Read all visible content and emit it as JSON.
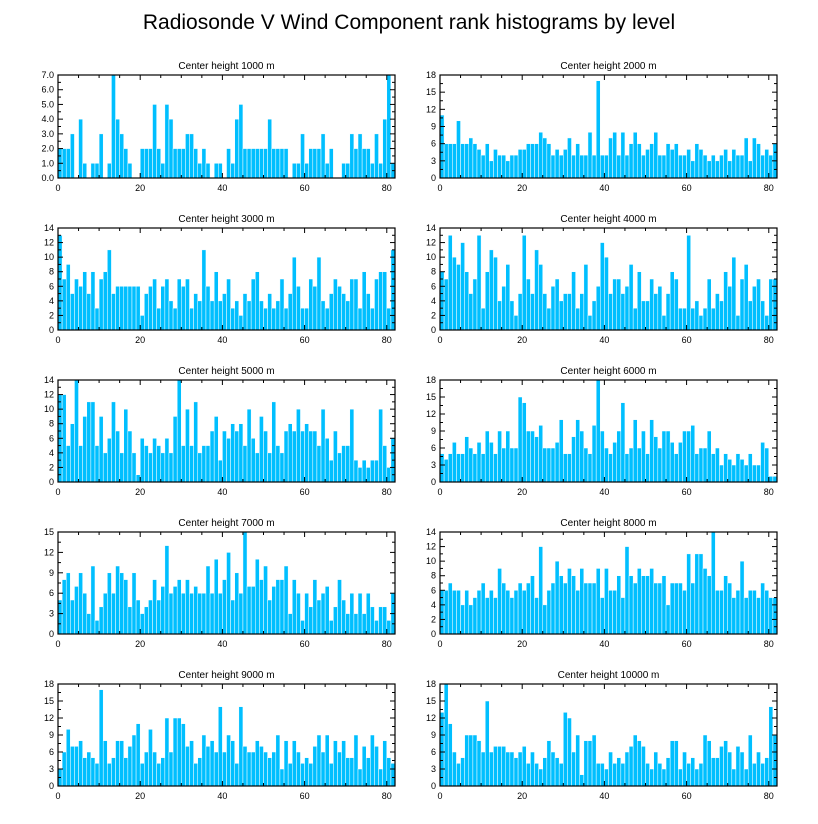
{
  "title": "Radiosonde V Wind Component rank histograms by level",
  "colors": {
    "bar": "#00bfff",
    "bar_edge": "#ffffff",
    "axis": "#000000"
  },
  "chart_data": [
    {
      "type": "bar",
      "title": "Center height 1000 m",
      "xlim": [
        0,
        82
      ],
      "xticks": [
        0,
        20,
        40,
        60,
        80
      ],
      "ylim": [
        0,
        7
      ],
      "yticks": [
        0,
        1,
        2,
        3,
        4,
        5,
        6,
        7
      ],
      "ytick_labels": [
        "0.0",
        "1.0",
        "2.0",
        "3.0",
        "4.0",
        "5.0",
        "6.0",
        "7.0"
      ],
      "values": [
        2,
        2,
        2,
        3,
        0,
        4,
        1,
        0,
        1,
        1,
        3,
        0,
        1,
        7,
        4,
        3,
        2,
        1,
        0,
        0,
        2,
        2,
        2,
        5,
        2,
        1,
        5,
        4,
        2,
        2,
        2,
        3,
        3,
        2,
        1,
        2,
        1,
        0,
        1,
        1,
        0,
        2,
        1,
        4,
        5,
        2,
        2,
        2,
        2,
        2,
        2,
        4,
        2,
        2,
        2,
        2,
        0,
        1,
        1,
        3,
        1,
        2,
        2,
        2,
        3,
        1,
        2,
        0,
        0,
        1,
        1,
        3,
        2,
        3,
        2,
        2,
        1,
        3,
        1,
        4,
        7,
        1
      ]
    },
    {
      "type": "bar",
      "title": "Center height 2000 m",
      "xlim": [
        0,
        82
      ],
      "xticks": [
        0,
        20,
        40,
        60,
        80
      ],
      "ylim": [
        0,
        18
      ],
      "yticks": [
        0,
        3,
        6,
        9,
        12,
        15,
        18
      ],
      "ytick_labels": [
        "0",
        "3",
        "6",
        "9",
        "12",
        "15",
        "18"
      ],
      "values": [
        11,
        6,
        6,
        6,
        10,
        6,
        6,
        7,
        6,
        5,
        4,
        6,
        3,
        5,
        4,
        4,
        3,
        4,
        4,
        5,
        5,
        6,
        6,
        6,
        8,
        7,
        6,
        4,
        5,
        4,
        5,
        7,
        4,
        6,
        4,
        4,
        8,
        4,
        17,
        4,
        4,
        7,
        8,
        4,
        8,
        4,
        6,
        8,
        6,
        4,
        5,
        6,
        8,
        4,
        4,
        6,
        5,
        6,
        4,
        4,
        5,
        3,
        6,
        5,
        4,
        3,
        4,
        3,
        4,
        5,
        3,
        5,
        4,
        4,
        7,
        3,
        7,
        6,
        4,
        5,
        4,
        6
      ]
    },
    {
      "type": "bar",
      "title": "Center height 3000 m",
      "xlim": [
        0,
        82
      ],
      "xticks": [
        0,
        20,
        40,
        60,
        80
      ],
      "ylim": [
        0,
        14
      ],
      "yticks": [
        0,
        2,
        4,
        6,
        8,
        10,
        12,
        14
      ],
      "ytick_labels": [
        "0",
        "2",
        "4",
        "6",
        "8",
        "10",
        "12",
        "14"
      ],
      "values": [
        13,
        7,
        9,
        5,
        7,
        6,
        8,
        5,
        8,
        3,
        7,
        8,
        11,
        5,
        6,
        6,
        6,
        6,
        6,
        6,
        2,
        5,
        6,
        7,
        3,
        6,
        7,
        4,
        3,
        7,
        6,
        7,
        3,
        5,
        4,
        11,
        6,
        4,
        8,
        4,
        5,
        7,
        3,
        4,
        2,
        5,
        4,
        7,
        8,
        4,
        3,
        5,
        3,
        4,
        7,
        3,
        5,
        10,
        6,
        3,
        3,
        7,
        6,
        10,
        4,
        3,
        5,
        7,
        6,
        5,
        4,
        7,
        7,
        3,
        8,
        5,
        3,
        7,
        8,
        8,
        3,
        11
      ]
    },
    {
      "type": "bar",
      "title": "Center height 4000 m",
      "xlim": [
        0,
        82
      ],
      "xticks": [
        0,
        20,
        40,
        60,
        80
      ],
      "ylim": [
        0,
        14
      ],
      "yticks": [
        0,
        2,
        4,
        6,
        8,
        10,
        12,
        14
      ],
      "ytick_labels": [
        "0",
        "2",
        "4",
        "6",
        "8",
        "10",
        "12",
        "14"
      ],
      "values": [
        8,
        7,
        13,
        10,
        9,
        12,
        8,
        5,
        7,
        13,
        3,
        8,
        11,
        10,
        4,
        6,
        9,
        4,
        2,
        5,
        13,
        7,
        5,
        11,
        9,
        5,
        3,
        6,
        7,
        4,
        5,
        5,
        8,
        3,
        5,
        9,
        2,
        4,
        6,
        12,
        10,
        5,
        7,
        7,
        5,
        6,
        9,
        3,
        8,
        4,
        4,
        7,
        5,
        6,
        2,
        5,
        8,
        7,
        3,
        3,
        13,
        3,
        4,
        2,
        3,
        7,
        3,
        5,
        4,
        8,
        6,
        10,
        2,
        7,
        9,
        4,
        6,
        7,
        4,
        2,
        7,
        7
      ]
    },
    {
      "type": "bar",
      "title": "Center height 5000 m",
      "xlim": [
        0,
        82
      ],
      "xticks": [
        0,
        20,
        40,
        60,
        80
      ],
      "ylim": [
        0,
        14
      ],
      "yticks": [
        0,
        2,
        4,
        6,
        8,
        10,
        12,
        14
      ],
      "ytick_labels": [
        "0",
        "2",
        "4",
        "6",
        "8",
        "10",
        "12",
        "14"
      ],
      "values": [
        12,
        12,
        5,
        8,
        14,
        5,
        9,
        11,
        11,
        5,
        9,
        4,
        6,
        11,
        7,
        4,
        10,
        7,
        4,
        1,
        6,
        5,
        4,
        6,
        5,
        4,
        6,
        4,
        9,
        14,
        5,
        10,
        5,
        11,
        4,
        5,
        5,
        7,
        9,
        3,
        7,
        6,
        8,
        7,
        8,
        5,
        10,
        6,
        4,
        9,
        7,
        4,
        11,
        5,
        4,
        7,
        8,
        7,
        10,
        7,
        8,
        7,
        7,
        5,
        10,
        6,
        3,
        7,
        4,
        5,
        5,
        10,
        3,
        2,
        3,
        2,
        3,
        3,
        10,
        5,
        2,
        6
      ]
    },
    {
      "type": "bar",
      "title": "Center height 6000 m",
      "xlim": [
        0,
        82
      ],
      "xticks": [
        0,
        20,
        40,
        60,
        80
      ],
      "ylim": [
        0,
        18
      ],
      "yticks": [
        0,
        3,
        6,
        9,
        12,
        15,
        18
      ],
      "ytick_labels": [
        "0",
        "3",
        "6",
        "9",
        "12",
        "15",
        "18"
      ],
      "values": [
        5,
        4,
        5,
        7,
        5,
        5,
        8,
        6,
        5,
        7,
        5,
        9,
        7,
        5,
        9,
        6,
        9,
        6,
        6,
        15,
        14,
        9,
        9,
        8,
        10,
        6,
        6,
        6,
        7,
        11,
        5,
        5,
        8,
        11,
        9,
        6,
        5,
        10,
        18,
        9,
        6,
        5,
        7,
        9,
        14,
        5,
        6,
        11,
        6,
        9,
        5,
        11,
        8,
        6,
        9,
        9,
        7,
        5,
        7,
        9,
        9,
        10,
        5,
        6,
        6,
        9,
        5,
        6,
        3,
        5,
        4,
        3,
        5,
        4,
        3,
        5,
        3,
        3,
        7,
        6,
        1,
        1
      ]
    },
    {
      "type": "bar",
      "title": "Center height 7000 m",
      "xlim": [
        0,
        82
      ],
      "xticks": [
        0,
        20,
        40,
        60,
        80
      ],
      "ylim": [
        0,
        15
      ],
      "yticks": [
        0,
        3,
        6,
        9,
        12,
        15
      ],
      "ytick_labels": [
        "0",
        "3",
        "6",
        "9",
        "12",
        "15"
      ],
      "values": [
        5,
        8,
        9,
        5,
        7,
        9,
        6,
        3,
        10,
        2,
        4,
        6,
        9,
        6,
        10,
        9,
        8,
        4,
        9,
        5,
        3,
        4,
        5,
        8,
        5,
        7,
        13,
        6,
        7,
        8,
        6,
        8,
        6,
        7,
        6,
        6,
        10,
        6,
        11,
        6,
        8,
        12,
        5,
        9,
        6,
        15,
        7,
        7,
        11,
        8,
        10,
        5,
        7,
        8,
        8,
        10,
        3,
        8,
        6,
        2,
        6,
        4,
        8,
        5,
        6,
        7,
        2,
        4,
        8,
        5,
        3,
        6,
        3,
        6,
        3,
        6,
        4,
        2,
        4,
        4,
        2,
        6
      ]
    },
    {
      "type": "bar",
      "title": "Center height 8000 m",
      "xlim": [
        0,
        82
      ],
      "xticks": [
        0,
        20,
        40,
        60,
        80
      ],
      "ylim": [
        0,
        14
      ],
      "yticks": [
        0,
        2,
        4,
        6,
        8,
        10,
        12,
        14
      ],
      "ytick_labels": [
        "0",
        "2",
        "4",
        "6",
        "8",
        "10",
        "12",
        "14"
      ],
      "values": [
        6,
        6,
        7,
        6,
        6,
        4,
        6,
        4,
        5,
        6,
        7,
        5,
        6,
        5,
        9,
        7,
        6,
        5,
        6,
        7,
        6,
        7,
        8,
        5,
        12,
        4,
        6,
        7,
        10,
        8,
        7,
        9,
        8,
        6,
        9,
        7,
        7,
        7,
        9,
        5,
        9,
        6,
        6,
        8,
        5,
        12,
        8,
        7,
        9,
        8,
        8,
        9,
        7,
        7,
        8,
        4,
        7,
        7,
        7,
        6,
        11,
        7,
        11,
        11,
        9,
        8,
        14,
        6,
        6,
        8,
        7,
        5,
        6,
        10,
        5,
        6,
        6,
        5,
        7,
        6,
        5,
        5
      ]
    },
    {
      "type": "bar",
      "title": "Center height 9000 m",
      "xlim": [
        0,
        82
      ],
      "xticks": [
        0,
        20,
        40,
        60,
        80
      ],
      "ylim": [
        0,
        18
      ],
      "yticks": [
        0,
        3,
        6,
        9,
        12,
        15,
        18
      ],
      "ytick_labels": [
        "0",
        "3",
        "6",
        "9",
        "12",
        "15",
        "18"
      ],
      "values": [
        3,
        6,
        10,
        7,
        7,
        8,
        5,
        6,
        5,
        4,
        17,
        8,
        4,
        5,
        8,
        8,
        5,
        7,
        9,
        11,
        4,
        6,
        10,
        6,
        4,
        5,
        12,
        6,
        12,
        12,
        11,
        7,
        8,
        4,
        5,
        9,
        7,
        8,
        6,
        14,
        6,
        9,
        8,
        4,
        14,
        7,
        6,
        6,
        8,
        7,
        6,
        5,
        6,
        9,
        3,
        8,
        4,
        8,
        6,
        4,
        5,
        4,
        7,
        9,
        6,
        9,
        4,
        8,
        6,
        8,
        5,
        5,
        9,
        3,
        7,
        5,
        9,
        7,
        3,
        8,
        5,
        4
      ]
    },
    {
      "type": "bar",
      "title": "Center height 10000 m",
      "xlim": [
        0,
        82
      ],
      "xticks": [
        0,
        20,
        40,
        60,
        80
      ],
      "ylim": [
        0,
        18
      ],
      "yticks": [
        0,
        3,
        6,
        9,
        12,
        15,
        18
      ],
      "ytick_labels": [
        "0",
        "3",
        "6",
        "9",
        "12",
        "15",
        "18"
      ],
      "values": [
        13,
        18,
        11,
        6,
        4,
        5,
        9,
        9,
        9,
        8,
        6,
        15,
        6,
        7,
        7,
        7,
        6,
        6,
        5,
        6,
        7,
        4,
        6,
        4,
        3,
        5,
        8,
        6,
        5,
        4,
        13,
        12,
        6,
        9,
        2,
        8,
        8,
        9,
        4,
        4,
        3,
        6,
        4,
        5,
        4,
        6,
        7,
        9,
        8,
        7,
        4,
        3,
        6,
        4,
        3,
        5,
        8,
        8,
        3,
        6,
        4,
        5,
        3,
        4,
        9,
        8,
        5,
        5,
        7,
        8,
        6,
        3,
        7,
        6,
        3,
        9,
        4,
        6,
        4,
        5,
        14,
        9
      ]
    }
  ]
}
